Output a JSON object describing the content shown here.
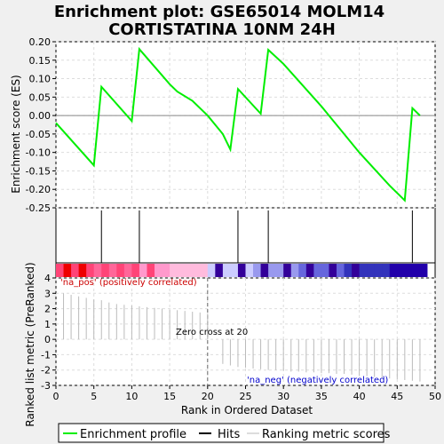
{
  "chart_data": {
    "type": "line",
    "title": [
      "Enrichment plot: GSE65014 MOLM14",
      "CORTISTATINA 10NM 24H"
    ],
    "top_panel": {
      "ylabel": "Enrichment score (ES)",
      "ylim": [
        -0.25,
        0.2
      ],
      "yticks": [
        "0.20",
        "0.15",
        "0.10",
        "0.05",
        "0.00",
        "-0.05",
        "-0.10",
        "-0.15",
        "-0.20",
        "-0.25"
      ],
      "ytick_values": [
        0.2,
        0.15,
        0.1,
        0.05,
        0.0,
        -0.05,
        -0.1,
        -0.15,
        -0.2,
        -0.25
      ],
      "series_color": "#00ee00",
      "es_curve": [
        [
          0,
          -0.02
        ],
        [
          5,
          -0.135
        ],
        [
          6,
          0.078
        ],
        [
          10,
          -0.015
        ],
        [
          11,
          0.18
        ],
        [
          15,
          0.085
        ],
        [
          16,
          0.065
        ],
        [
          18,
          0.04
        ],
        [
          20,
          0.0
        ],
        [
          22,
          -0.05
        ],
        [
          23,
          -0.092
        ],
        [
          24,
          0.072
        ],
        [
          27,
          0.005
        ],
        [
          28,
          0.178
        ],
        [
          30,
          0.14
        ],
        [
          35,
          0.025
        ],
        [
          40,
          -0.1
        ],
        [
          44,
          -0.19
        ],
        [
          46,
          -0.23
        ],
        [
          47,
          0.02
        ],
        [
          48,
          0.0
        ]
      ]
    },
    "hits": [
      6,
      11,
      24,
      28,
      47
    ],
    "ranked_list": {
      "ylabel": "Ranked list metric (PreRanked)",
      "ylim": [
        -3,
        4
      ],
      "yticks": [
        "4",
        "3",
        "2",
        "1",
        "0",
        "-1",
        "-2",
        "-3"
      ],
      "ytick_values": [
        4,
        3,
        2,
        1,
        0,
        -1,
        -2,
        -3
      ],
      "xlabel": "Rank in Ordered Dataset",
      "xlim": [
        0,
        50
      ],
      "xticks": [
        "0",
        "5",
        "10",
        "15",
        "20",
        "25",
        "30",
        "35",
        "40",
        "45",
        "50"
      ],
      "xtick_values": [
        0,
        5,
        10,
        15,
        20,
        25,
        30,
        35,
        40,
        45,
        50
      ],
      "metric_values": [
        3.0,
        2.9,
        2.8,
        2.7,
        2.6,
        2.55,
        2.4,
        2.3,
        2.25,
        2.2,
        2.15,
        2.1,
        2.05,
        2.0,
        1.95,
        1.9,
        1.85,
        1.8,
        1.75,
        1.7,
        0.0,
        -1.6,
        -1.7,
        -1.8,
        -1.85,
        -1.9,
        -1.95,
        -2.0,
        -2.0,
        -2.05,
        -2.1,
        -2.1,
        -2.15,
        -2.15,
        -2.2,
        -2.2,
        -2.25,
        -2.25,
        -2.3,
        -2.35,
        -2.4,
        -2.45,
        -2.5,
        -2.55,
        -2.6,
        -2.65,
        -2.7,
        -2.75
      ],
      "zero_cross_rank": 20,
      "zero_cross_label": "Zero cross at 20",
      "pos_label": "'na_pos' (positively correlated)",
      "neg_label": "'na_neg' (negatively correlated)",
      "pos_color": "#cc0000",
      "neg_color": "#0000cc"
    },
    "legend": [
      {
        "label": "Enrichment profile",
        "color": "#00ee00",
        "style": "line"
      },
      {
        "label": "Hits",
        "color": "#000000",
        "style": "line"
      },
      {
        "label": "Ranking metric scores",
        "color": "#bbbbbb",
        "style": "thin"
      }
    ]
  }
}
